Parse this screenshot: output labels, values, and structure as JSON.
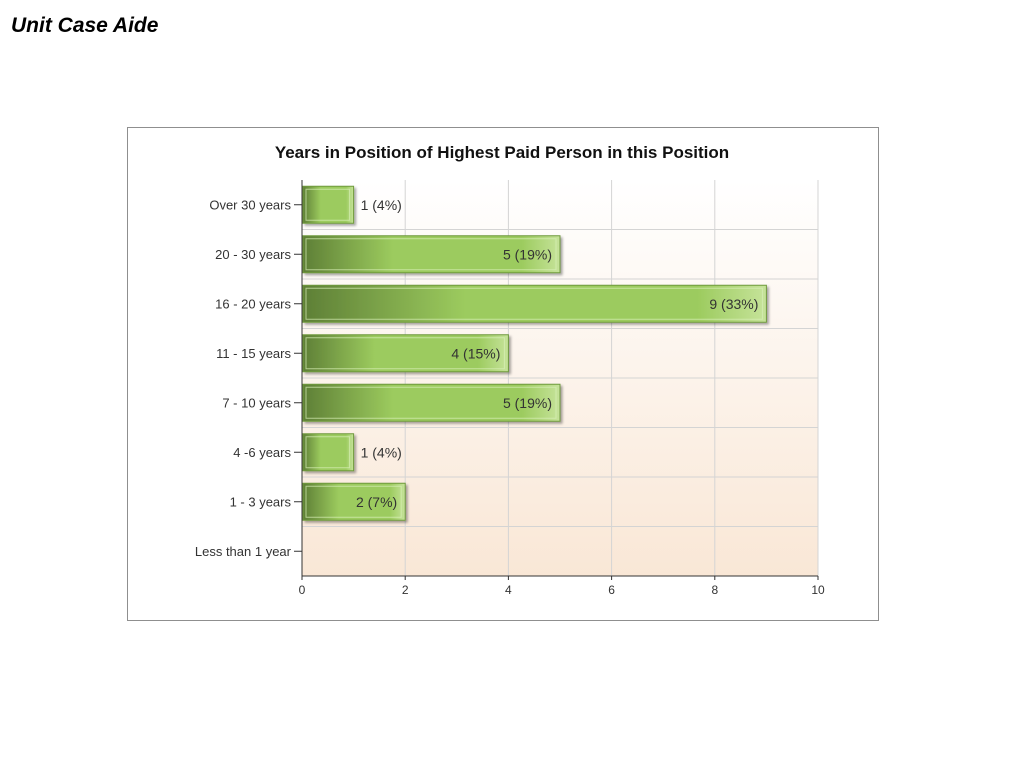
{
  "slide": {
    "title": "Unit Case Aide"
  },
  "colors": {
    "bar_dark": "#5e7f36",
    "bar_mid": "#9ccb5e",
    "bar_light": "#c6e39a",
    "plot_top": "#ffffff",
    "plot_bottom": "#f9e7d6",
    "grid": "#d4d4d4"
  },
  "chart_data": {
    "type": "bar",
    "orientation": "horizontal",
    "title": "Years in Position of Highest Paid Person in this Position",
    "categories": [
      "Over 30 years",
      "20 - 30 years",
      "16 - 20 years",
      "11 - 15 years",
      "7 - 10 years",
      "4 -6 years",
      "1 - 3 years",
      "Less than 1 year"
    ],
    "values": [
      1,
      5,
      9,
      4,
      5,
      1,
      2,
      0
    ],
    "data_labels": [
      "1 (4%)",
      "5 (19%)",
      "9 (33%)",
      "4 (15%)",
      "5 (19%)",
      "1 (4%)",
      "2 (7%)",
      ""
    ],
    "xlim": [
      0,
      10
    ],
    "x_ticks": [
      0,
      2,
      4,
      6,
      8,
      10
    ],
    "xlabel": "",
    "ylabel": "",
    "grid": true,
    "legend": "none"
  }
}
